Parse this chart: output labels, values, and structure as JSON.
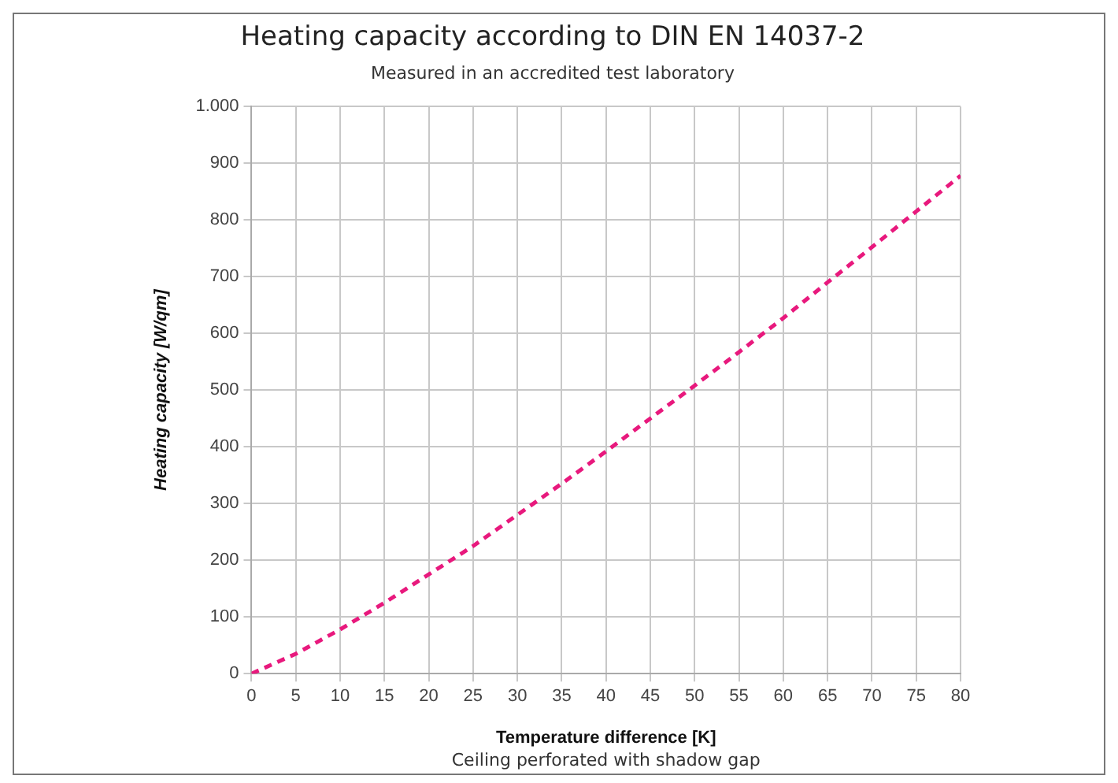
{
  "chart_data": {
    "type": "line",
    "title": "Heating capacity according to DIN EN 14037-2",
    "subtitle": "Measured in an accredited test laboratory",
    "xlabel": "Temperature difference [K]",
    "ylabel": "Heating capacity [W/qm]",
    "annotations": [
      "Ceiling perforated with shadow gap"
    ],
    "x": [
      0,
      5,
      10,
      15,
      20,
      25,
      30,
      35,
      40,
      45,
      50,
      55,
      60,
      65,
      70,
      75,
      80
    ],
    "series": [
      {
        "color": "#e8197d",
        "values": [
          0,
          35,
          78,
          125,
          175,
          225,
          280,
          335,
          392,
          450,
          508,
          567,
          627,
          690,
          752,
          815,
          878
        ]
      }
    ],
    "xlim": [
      0,
      80
    ],
    "xticks": [
      0,
      5,
      10,
      15,
      20,
      25,
      30,
      35,
      40,
      45,
      50,
      55,
      60,
      65,
      70,
      75,
      80
    ],
    "ylim": [
      0,
      1000
    ],
    "yticks": [
      0,
      100,
      200,
      300,
      400,
      500,
      600,
      700,
      800,
      900,
      {
        "value": 1000,
        "label": "1.000"
      }
    ],
    "grid": true,
    "legend": false,
    "marker": "none",
    "line_style": "dashed"
  }
}
